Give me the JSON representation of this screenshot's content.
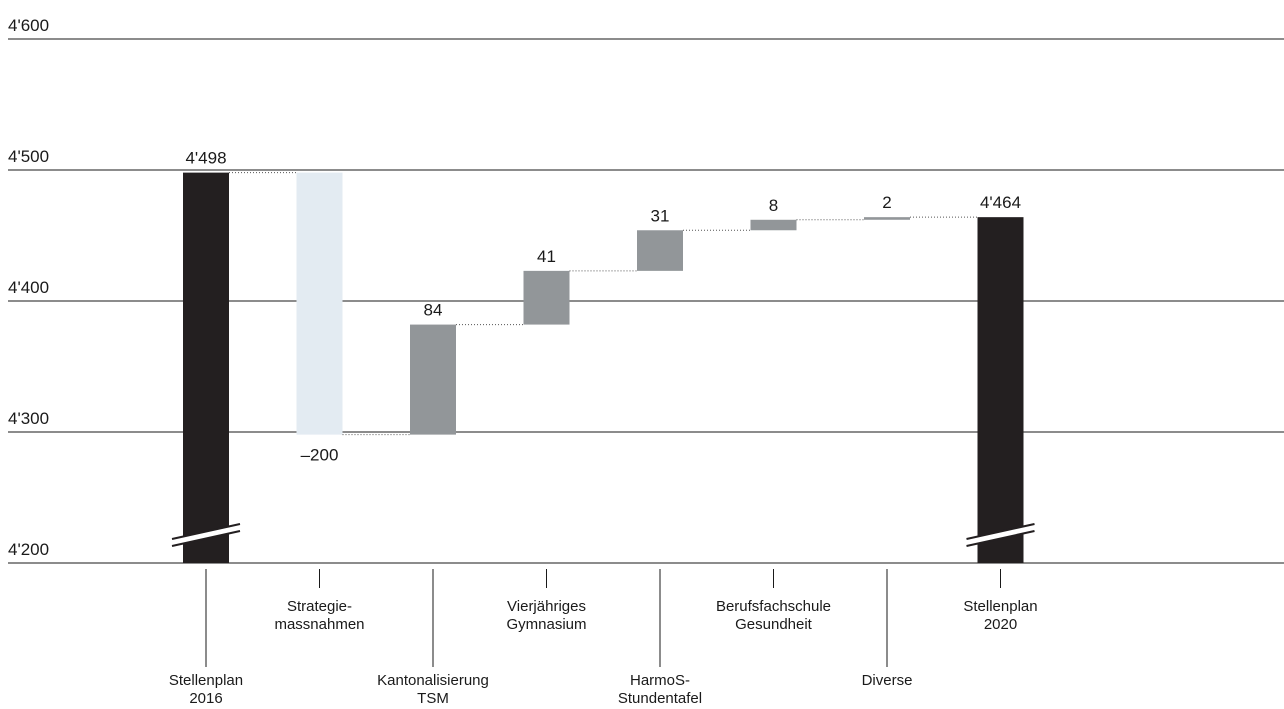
{
  "chart_data": {
    "type": "bar",
    "subtype": "waterfall",
    "y_ticks": [
      "4'200",
      "4'300",
      "4'400",
      "4'500",
      "4'600"
    ],
    "ylim": [
      4200,
      4600
    ],
    "y_axis_break": true,
    "grid": true,
    "categories": [
      {
        "lines": [
          "Stellenplan",
          "2016"
        ],
        "label_row": "lower"
      },
      {
        "lines": [
          "Strategie-",
          "massnahmen"
        ],
        "label_row": "upper"
      },
      {
        "lines": [
          "Kantonalisierung",
          "TSM"
        ],
        "label_row": "lower"
      },
      {
        "lines": [
          "Vierjähriges",
          "Gymnasium"
        ],
        "label_row": "upper"
      },
      {
        "lines": [
          "HarmoS-",
          "Stundentafel"
        ],
        "label_row": "lower"
      },
      {
        "lines": [
          "Berufsfachschule",
          "Gesundheit"
        ],
        "label_row": "upper"
      },
      {
        "lines": [
          "Diverse"
        ],
        "label_row": "lower"
      },
      {
        "lines": [
          "Stellenplan",
          "2020"
        ],
        "label_row": "upper"
      }
    ],
    "bars": [
      {
        "kind": "total",
        "start": 4200,
        "end": 4498,
        "value_label": "4'498",
        "color": "#231f20",
        "break_mark": true
      },
      {
        "kind": "delta",
        "start": 4498,
        "end": 4298,
        "value_label": "–200",
        "color": "#e3ebf2",
        "label_side": "below"
      },
      {
        "kind": "delta",
        "start": 4298,
        "end": 4382,
        "value_label": "84",
        "color": "#929699",
        "label_side": "above"
      },
      {
        "kind": "delta",
        "start": 4382,
        "end": 4423,
        "value_label": "41",
        "color": "#929699",
        "label_side": "above"
      },
      {
        "kind": "delta",
        "start": 4423,
        "end": 4454,
        "value_label": "31",
        "color": "#929699",
        "label_side": "above"
      },
      {
        "kind": "delta",
        "start": 4454,
        "end": 4462,
        "value_label": "8",
        "color": "#929699",
        "label_side": "above"
      },
      {
        "kind": "delta",
        "start": 4462,
        "end": 4464,
        "value_label": "2",
        "color": "#929699",
        "label_side": "above"
      },
      {
        "kind": "total",
        "start": 4200,
        "end": 4464,
        "value_label": "4'464",
        "color": "#231f20",
        "break_mark": true
      }
    ]
  }
}
